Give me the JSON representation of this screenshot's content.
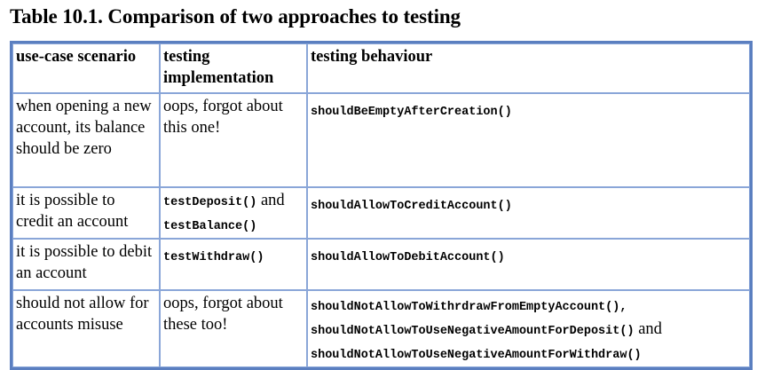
{
  "caption": "Table 10.1. Comparison of two approaches to testing",
  "headers": {
    "scenario": "use-case scenario",
    "implementation": "testing implementation",
    "behaviour": "testing behaviour"
  },
  "rows": [
    {
      "scenario": "when opening a new account, its balance should be zero",
      "implementation_text": "oops, forgot about this one!",
      "behaviour": [
        "shouldBeEmptyAfterCreation()"
      ]
    },
    {
      "scenario": "it is possible to credit an account",
      "implementation_code_1": "testDeposit()",
      "implementation_joiner": "and",
      "implementation_code_2": "testBalance()",
      "behaviour": [
        "shouldAllowToCreditAccount()"
      ]
    },
    {
      "scenario": "it is possible to debit an account",
      "implementation_code_1": "testWithdraw()",
      "behaviour": [
        "shouldAllowToDebitAccount()"
      ]
    },
    {
      "scenario": "should not allow for accounts misuse",
      "implementation_text": "oops, forgot about these too!",
      "behaviour": [
        "shouldNotAllowToWithrdrawFromEmptyAccount(),",
        "shouldNotAllowToUseNegativeAmountForDeposit()",
        "shouldNotAllowToUseNegativeAmountForWithdraw()"
      ],
      "behaviour_joiner": "and"
    }
  ]
}
